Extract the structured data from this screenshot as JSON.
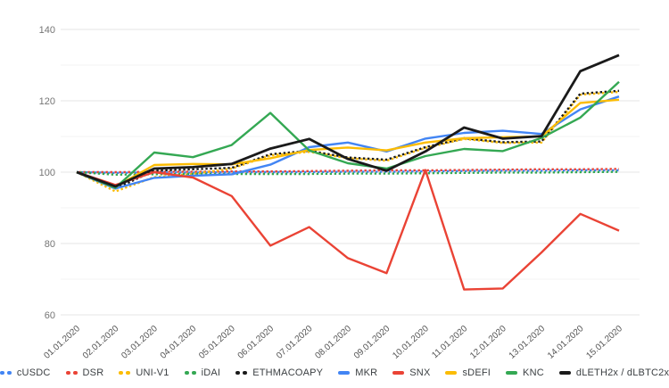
{
  "chart_data": {
    "type": "line",
    "title": "",
    "xlabel": "",
    "ylabel": "",
    "ylim": [
      60,
      145
    ],
    "grid": true,
    "legend_position": "bottom",
    "y_ticks": [
      60,
      80,
      100,
      120,
      140
    ],
    "x_labels": [
      "01.01.2020",
      "02.01.2020",
      "03.01.2020",
      "04.01.2020",
      "05.01.2020",
      "06.01.2020",
      "07.01.2020",
      "08.01.2020",
      "09.01.2020",
      "10.01.2020",
      "11.01.2020",
      "12.01.2020",
      "13.01.2020",
      "14.01.2020",
      "15.01.2020"
    ],
    "series": [
      {
        "name": "cUSDC",
        "color": "#4285f4",
        "style": "dotted",
        "values": [
          100,
          99.8,
          99.9,
          99.9,
          100.0,
          100.0,
          100.0,
          100.1,
          100.1,
          100.2,
          100.3,
          100.4,
          100.4,
          100.5,
          100.5
        ]
      },
      {
        "name": "DSR",
        "color": "#ea4335",
        "style": "dotted",
        "values": [
          100,
          100.0,
          100.1,
          100.1,
          100.2,
          100.2,
          100.3,
          100.4,
          100.5,
          100.5,
          100.6,
          100.7,
          100.8,
          100.8,
          100.9
        ]
      },
      {
        "name": "UNI-V1",
        "color": "#fbbc04",
        "style": "dotted",
        "values": [
          100,
          94.6,
          98.6,
          99.5,
          101.0,
          104.7,
          105.7,
          103.9,
          103.2,
          106.8,
          109.3,
          108.2,
          108.3,
          121.7,
          122.5
        ]
      },
      {
        "name": "iDAI",
        "color": "#34a853",
        "style": "dotted",
        "values": [
          100,
          99.3,
          99.4,
          99.5,
          99.5,
          99.5,
          99.5,
          99.6,
          99.6,
          99.7,
          99.8,
          99.9,
          99.9,
          100.0,
          100.1
        ]
      },
      {
        "name": "ETHMACOAPY",
        "color": "#1a1a1a",
        "style": "dotted",
        "values": [
          100,
          95.4,
          100.4,
          100.8,
          101.2,
          105.0,
          106.0,
          104.1,
          103.5,
          107.0,
          109.5,
          108.4,
          108.6,
          122.0,
          122.8
        ]
      },
      {
        "name": "MKR",
        "color": "#4285f4",
        "style": "solid",
        "values": [
          100,
          95.4,
          98.4,
          99.0,
          99.4,
          102.1,
          107.0,
          108.3,
          105.8,
          109.4,
          111.0,
          111.6,
          110.7,
          117.6,
          121.2
        ]
      },
      {
        "name": "SNX",
        "color": "#ea4335",
        "style": "solid",
        "values": [
          100,
          96.4,
          100.0,
          98.5,
          93.3,
          79.4,
          84.6,
          75.9,
          71.7,
          100.6,
          67.1,
          67.4,
          77.5,
          88.3,
          83.6
        ]
      },
      {
        "name": "sDEFI",
        "color": "#fbbc04",
        "style": "solid",
        "values": [
          100,
          95.9,
          102.0,
          102.3,
          102.2,
          103.9,
          106.2,
          106.9,
          106.1,
          108.3,
          109.5,
          109.8,
          110.0,
          119.4,
          120.3
        ]
      },
      {
        "name": "KNC",
        "color": "#34a853",
        "style": "solid",
        "values": [
          100,
          95.6,
          105.5,
          104.2,
          107.6,
          116.6,
          106.1,
          102.5,
          101.0,
          104.5,
          106.5,
          105.9,
          109.6,
          115.3,
          125.3
        ]
      },
      {
        "name": "dLETH2x / dLBTC2x",
        "color": "#1a1a1a",
        "style": "solid",
        "values": [
          100,
          96.0,
          101.0,
          101.4,
          102.3,
          106.6,
          109.3,
          103.7,
          100.4,
          105.8,
          112.5,
          109.4,
          110.1,
          128.3,
          132.8
        ]
      }
    ]
  },
  "style_tokens": {
    "grid_major_color": "#e6e6e6",
    "grid_minor_color": "#f3f3f3",
    "axis_label_color": "#757575",
    "x_label_color": "#555555",
    "background_color": "#ffffff"
  }
}
